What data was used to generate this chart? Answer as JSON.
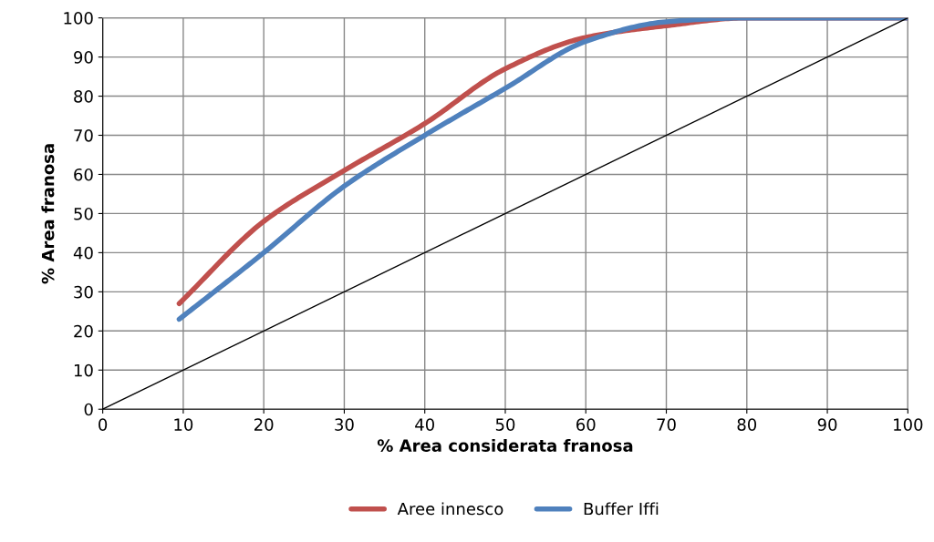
{
  "chart_data": {
    "type": "line",
    "xlabel": "% Area considerata franosa",
    "ylabel": "% Area franosa",
    "xlim": [
      0,
      100
    ],
    "ylim": [
      0,
      100
    ],
    "xticks": [
      0,
      10,
      20,
      30,
      40,
      50,
      60,
      70,
      80,
      90,
      100
    ],
    "yticks": [
      0,
      10,
      20,
      30,
      40,
      50,
      60,
      70,
      80,
      90,
      100
    ],
    "grid": true,
    "legend": "bottom",
    "marker": "none",
    "line_style": "solid",
    "series": [
      {
        "name": "Aree innesco",
        "color": "#c0504d",
        "x": [
          9.5,
          20,
          30,
          40,
          50,
          60,
          70,
          80,
          90,
          100
        ],
        "values": [
          27,
          48,
          61,
          73,
          87,
          95,
          98,
          100,
          100,
          100
        ]
      },
      {
        "name": "Buffer Iffi",
        "color": "#4f81bd",
        "x": [
          9.5,
          20,
          30,
          40,
          50,
          60,
          70,
          80,
          90,
          100
        ],
        "values": [
          23,
          40,
          57,
          70,
          82,
          94,
          99,
          100,
          100,
          100
        ]
      },
      {
        "color": "#000000",
        "x": [
          0,
          100
        ],
        "values": [
          0,
          100
        ]
      }
    ]
  }
}
